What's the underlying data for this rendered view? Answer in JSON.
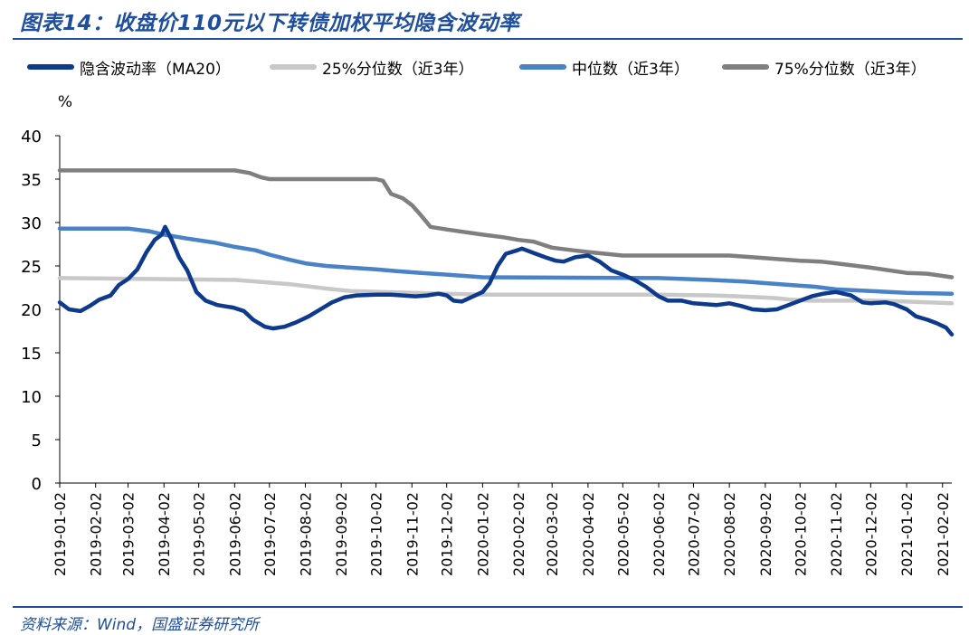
{
  "title": "图表14：收盘价110元以下转债加权平均隐含波动率",
  "source": "资料来源：Wind，国盛证券研究所",
  "chart_data": {
    "type": "line",
    "ylabel": "%",
    "ylim": [
      0,
      40
    ],
    "yticks": [
      0,
      5,
      10,
      15,
      20,
      25,
      30,
      35,
      40
    ],
    "x_ticks": [
      "2019-01-02",
      "2019-02-02",
      "2019-03-02",
      "2019-04-02",
      "2019-05-02",
      "2019-06-02",
      "2019-07-02",
      "2019-08-02",
      "2019-09-02",
      "2019-10-02",
      "2019-11-02",
      "2019-12-02",
      "2020-01-02",
      "2020-02-02",
      "2020-03-02",
      "2020-04-02",
      "2020-05-02",
      "2020-06-02",
      "2020-07-02",
      "2020-08-02",
      "2020-09-02",
      "2020-10-02",
      "2020-11-02",
      "2020-12-02",
      "2021-01-02",
      "2021-02-02"
    ],
    "x_range": [
      "2019-01-02",
      "2021-02-10"
    ],
    "grid": false,
    "legend_position": "top",
    "series": [
      {
        "name": "隐含波动率（MA20）",
        "color": "#0d3a8c",
        "width": 4.5,
        "points": [
          [
            "2019-01-02",
            20.8
          ],
          [
            "2019-01-10",
            20.0
          ],
          [
            "2019-01-20",
            19.8
          ],
          [
            "2019-01-28",
            20.4
          ],
          [
            "2019-02-05",
            21.1
          ],
          [
            "2019-02-15",
            21.6
          ],
          [
            "2019-02-22",
            22.8
          ],
          [
            "2019-03-02",
            23.5
          ],
          [
            "2019-03-10",
            24.6
          ],
          [
            "2019-03-18",
            26.6
          ],
          [
            "2019-03-25",
            28.0
          ],
          [
            "2019-03-31",
            28.6
          ],
          [
            "2019-04-03",
            29.5
          ],
          [
            "2019-04-08",
            28.2
          ],
          [
            "2019-04-15",
            26.0
          ],
          [
            "2019-04-22",
            24.5
          ],
          [
            "2019-04-30",
            22.0
          ],
          [
            "2019-05-08",
            21.0
          ],
          [
            "2019-05-18",
            20.5
          ],
          [
            "2019-06-01",
            20.2
          ],
          [
            "2019-06-10",
            19.8
          ],
          [
            "2019-06-18",
            18.8
          ],
          [
            "2019-06-28",
            18.0
          ],
          [
            "2019-07-05",
            17.8
          ],
          [
            "2019-07-15",
            18.0
          ],
          [
            "2019-07-25",
            18.5
          ],
          [
            "2019-08-05",
            19.2
          ],
          [
            "2019-08-15",
            20.0
          ],
          [
            "2019-08-25",
            20.8
          ],
          [
            "2019-09-05",
            21.4
          ],
          [
            "2019-09-15",
            21.6
          ],
          [
            "2019-10-02",
            21.7
          ],
          [
            "2019-10-15",
            21.7
          ],
          [
            "2019-10-25",
            21.6
          ],
          [
            "2019-11-05",
            21.5
          ],
          [
            "2019-11-15",
            21.6
          ],
          [
            "2019-11-25",
            21.8
          ],
          [
            "2019-12-02",
            21.6
          ],
          [
            "2019-12-08",
            21.0
          ],
          [
            "2019-12-15",
            20.9
          ],
          [
            "2019-12-25",
            21.5
          ],
          [
            "2020-01-02",
            22.0
          ],
          [
            "2020-01-08",
            23.0
          ],
          [
            "2020-01-15",
            25.0
          ],
          [
            "2020-01-22",
            26.4
          ],
          [
            "2020-02-01",
            26.8
          ],
          [
            "2020-02-05",
            27.0
          ],
          [
            "2020-02-15",
            26.5
          ],
          [
            "2020-02-25",
            26.0
          ],
          [
            "2020-03-05",
            25.6
          ],
          [
            "2020-03-12",
            25.5
          ],
          [
            "2020-03-22",
            26.0
          ],
          [
            "2020-04-02",
            26.2
          ],
          [
            "2020-04-12",
            25.5
          ],
          [
            "2020-04-22",
            24.5
          ],
          [
            "2020-05-02",
            24.0
          ],
          [
            "2020-05-12",
            23.4
          ],
          [
            "2020-05-22",
            22.6
          ],
          [
            "2020-06-02",
            21.5
          ],
          [
            "2020-06-10",
            21.0
          ],
          [
            "2020-06-22",
            21.0
          ],
          [
            "2020-07-02",
            20.7
          ],
          [
            "2020-07-12",
            20.6
          ],
          [
            "2020-07-22",
            20.5
          ],
          [
            "2020-08-02",
            20.7
          ],
          [
            "2020-08-12",
            20.4
          ],
          [
            "2020-08-22",
            20.0
          ],
          [
            "2020-09-02",
            19.9
          ],
          [
            "2020-09-12",
            20.0
          ],
          [
            "2020-09-20",
            20.4
          ],
          [
            "2020-10-02",
            21.0
          ],
          [
            "2020-10-12",
            21.5
          ],
          [
            "2020-10-22",
            21.8
          ],
          [
            "2020-11-02",
            22.0
          ],
          [
            "2020-11-15",
            21.6
          ],
          [
            "2020-11-25",
            20.8
          ],
          [
            "2020-12-02",
            20.7
          ],
          [
            "2020-12-15",
            20.8
          ],
          [
            "2020-12-22",
            20.6
          ],
          [
            "2021-01-02",
            20.0
          ],
          [
            "2021-01-10",
            19.2
          ],
          [
            "2021-01-20",
            18.8
          ],
          [
            "2021-01-28",
            18.4
          ],
          [
            "2021-02-05",
            17.9
          ],
          [
            "2021-02-10",
            17.1
          ]
        ]
      },
      {
        "name": "25%分位数（近3年）",
        "color": "#c8c8c8",
        "width": 4.5,
        "points": [
          [
            "2019-01-02",
            23.6
          ],
          [
            "2019-06-02",
            23.4
          ],
          [
            "2019-07-20",
            22.9
          ],
          [
            "2019-08-20",
            22.4
          ],
          [
            "2019-09-10",
            22.1
          ],
          [
            "2019-11-02",
            21.9
          ],
          [
            "2019-12-02",
            21.8
          ],
          [
            "2020-01-02",
            21.7
          ],
          [
            "2020-06-02",
            21.7
          ],
          [
            "2020-07-20",
            21.6
          ],
          [
            "2020-08-10",
            21.5
          ],
          [
            "2020-09-10",
            21.3
          ],
          [
            "2020-09-25",
            21.1
          ],
          [
            "2020-10-10",
            21.0
          ],
          [
            "2020-12-02",
            21.0
          ],
          [
            "2021-01-02",
            20.9
          ],
          [
            "2021-02-10",
            20.7
          ]
        ]
      },
      {
        "name": "中位数（近3年）",
        "color": "#4a82c8",
        "width": 4.5,
        "points": [
          [
            "2019-01-02",
            29.3
          ],
          [
            "2019-03-02",
            29.3
          ],
          [
            "2019-03-20",
            29.0
          ],
          [
            "2019-04-02",
            28.6
          ],
          [
            "2019-04-20",
            28.2
          ],
          [
            "2019-05-15",
            27.7
          ],
          [
            "2019-06-02",
            27.2
          ],
          [
            "2019-06-20",
            26.8
          ],
          [
            "2019-07-02",
            26.3
          ],
          [
            "2019-07-20",
            25.7
          ],
          [
            "2019-08-02",
            25.3
          ],
          [
            "2019-08-20",
            25.0
          ],
          [
            "2019-09-10",
            24.8
          ],
          [
            "2019-10-02",
            24.6
          ],
          [
            "2019-10-20",
            24.4
          ],
          [
            "2019-11-10",
            24.2
          ],
          [
            "2019-12-02",
            24.0
          ],
          [
            "2020-01-02",
            23.7
          ],
          [
            "2020-06-02",
            23.6
          ],
          [
            "2020-07-15",
            23.4
          ],
          [
            "2020-08-15",
            23.2
          ],
          [
            "2020-09-15",
            22.9
          ],
          [
            "2020-10-15",
            22.6
          ],
          [
            "2020-11-02",
            22.3
          ],
          [
            "2020-12-02",
            22.1
          ],
          [
            "2021-01-02",
            21.9
          ],
          [
            "2021-02-10",
            21.8
          ]
        ]
      },
      {
        "name": "75%分位数（近3年）",
        "color": "#7f7f7f",
        "width": 4.5,
        "points": [
          [
            "2019-01-02",
            36.0
          ],
          [
            "2019-06-02",
            36.0
          ],
          [
            "2019-06-15",
            35.7
          ],
          [
            "2019-06-25",
            35.2
          ],
          [
            "2019-07-02",
            35.0
          ],
          [
            "2019-10-02",
            35.0
          ],
          [
            "2019-10-08",
            34.8
          ],
          [
            "2019-10-15",
            33.3
          ],
          [
            "2019-10-25",
            32.8
          ],
          [
            "2019-11-02",
            32.0
          ],
          [
            "2019-11-10",
            30.8
          ],
          [
            "2019-11-18",
            29.5
          ],
          [
            "2019-12-02",
            29.2
          ],
          [
            "2020-01-02",
            28.6
          ],
          [
            "2020-01-20",
            28.3
          ],
          [
            "2020-02-02",
            28.0
          ],
          [
            "2020-02-15",
            27.8
          ],
          [
            "2020-03-02",
            27.1
          ],
          [
            "2020-03-20",
            26.8
          ],
          [
            "2020-04-02",
            26.6
          ],
          [
            "2020-05-02",
            26.2
          ],
          [
            "2020-08-02",
            26.2
          ],
          [
            "2020-09-02",
            25.9
          ],
          [
            "2020-10-02",
            25.6
          ],
          [
            "2020-10-20",
            25.5
          ],
          [
            "2020-11-02",
            25.3
          ],
          [
            "2020-12-02",
            24.8
          ],
          [
            "2021-01-02",
            24.2
          ],
          [
            "2021-01-20",
            24.1
          ],
          [
            "2021-02-10",
            23.7
          ]
        ]
      }
    ]
  }
}
